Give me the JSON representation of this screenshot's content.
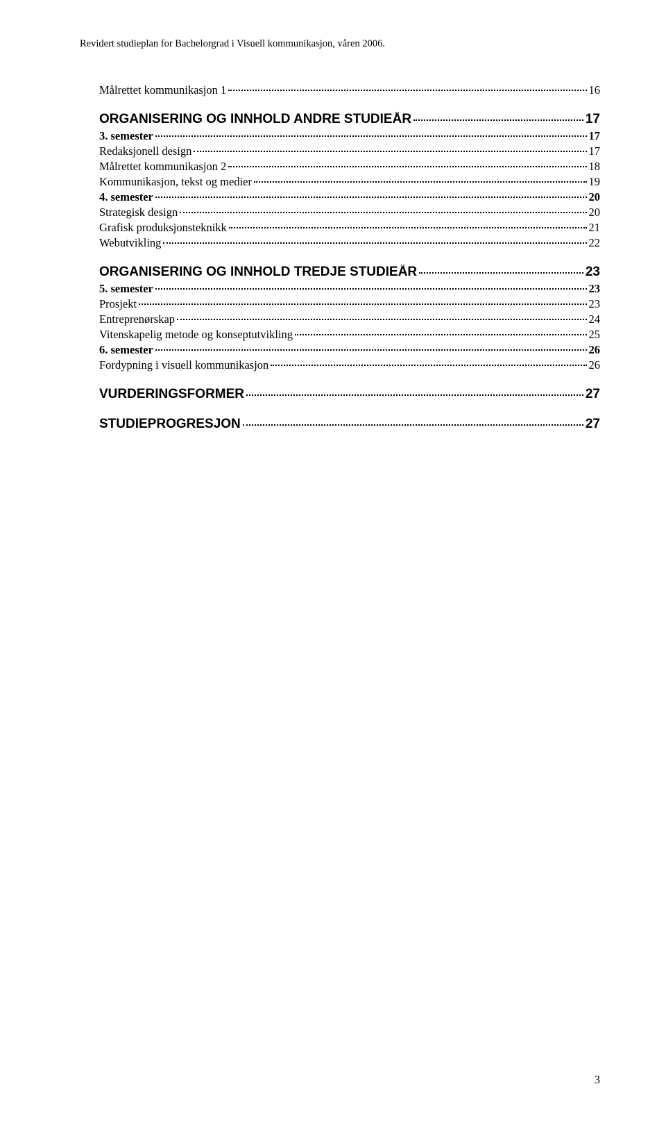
{
  "header": "Revidert studieplan for Bachelorgrad i Visuell kommunikasjon, våren 2006.",
  "lines": [
    {
      "label": "Målrettet kommunikasjon 1",
      "page": "16",
      "style": "sub-normal first-item"
    },
    {
      "label": "ORGANISERING OG INNHOLD ANDRE STUDIEÅR",
      "page": "17",
      "style": "section-heading"
    },
    {
      "label": "3. semester",
      "page": "17",
      "style": "sub-bold"
    },
    {
      "label": "Redaksjonell design",
      "page": "17",
      "style": "sub-normal"
    },
    {
      "label": "Målrettet kommunikasjon 2",
      "page": "18",
      "style": "sub-normal"
    },
    {
      "label": "Kommunikasjon, tekst og medier",
      "page": "19",
      "style": "sub-normal"
    },
    {
      "label": "4. semester",
      "page": "20",
      "style": "sub-bold"
    },
    {
      "label": "Strategisk design",
      "page": "20",
      "style": "sub-normal"
    },
    {
      "label": "Grafisk produksjonsteknikk",
      "page": "21",
      "style": "sub-normal"
    },
    {
      "label": "Webutvikling",
      "page": "22",
      "style": "sub-normal"
    },
    {
      "label": "ORGANISERING OG INNHOLD TREDJE STUDIEÅR",
      "page": "23",
      "style": "section-heading"
    },
    {
      "label": "5. semester",
      "page": "23",
      "style": "sub-bold"
    },
    {
      "label": "Prosjekt",
      "page": "23",
      "style": "sub-normal"
    },
    {
      "label": "Entreprenørskap",
      "page": "24",
      "style": "sub-normal"
    },
    {
      "label": "Vitenskapelig metode og konseptutvikling",
      "page": "25",
      "style": "sub-normal"
    },
    {
      "label": "6. semester",
      "page": "26",
      "style": "sub-bold"
    },
    {
      "label": "Fordypning i visuell kommunikasjon",
      "page": "26",
      "style": "sub-normal"
    },
    {
      "label": "VURDERINGSFORMER",
      "page": "27",
      "style": "section-heading"
    },
    {
      "label": "STUDIEPROGRESJON",
      "page": "27",
      "style": "section-heading"
    }
  ],
  "pageNumber": "3",
  "colors": {
    "background": "#ffffff",
    "text": "#000000"
  },
  "typography": {
    "header_fontsize": 14.5,
    "heading_fontsize": 19,
    "body_fontsize": 16.5,
    "heading_font": "Arial",
    "body_font": "Times New Roman"
  }
}
